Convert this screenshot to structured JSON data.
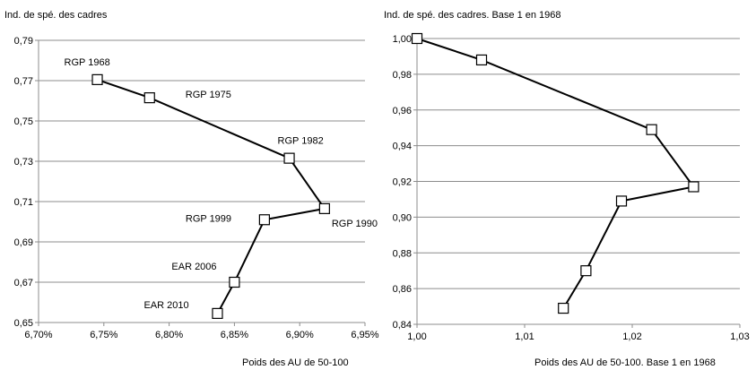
{
  "chart_data": [
    {
      "type": "line",
      "ylabel": "Ind. de spé.  des cadres",
      "xlabel": "Poids des AU de 50-100",
      "xlim": [
        6.7,
        6.95
      ],
      "ylim": [
        0.65,
        0.79
      ],
      "x_ticks": [
        "6,70%",
        "6,75%",
        "6,80%",
        "6,85%",
        "6,90%",
        "6,95%"
      ],
      "y_ticks": [
        "0,65",
        "0,67",
        "0,69",
        "0,71",
        "0,73",
        "0,75",
        "0,77",
        "0,79"
      ],
      "grid": "horizontal",
      "points": [
        {
          "label": "RGP 1968",
          "x": 6.745,
          "y": 0.7705
        },
        {
          "label": "RGP 1975",
          "x": 6.785,
          "y": 0.7615
        },
        {
          "label": "RGP 1982",
          "x": 6.892,
          "y": 0.7315
        },
        {
          "label": "RGP 1990",
          "x": 6.919,
          "y": 0.7065
        },
        {
          "label": "RGP 1999",
          "x": 6.873,
          "y": 0.701
        },
        {
          "label": "EAR 2006",
          "x": 6.85,
          "y": 0.67
        },
        {
          "label": "EAR 2010",
          "x": 6.837,
          "y": 0.6545
        }
      ]
    },
    {
      "type": "line",
      "ylabel": "Ind. de spé.  des cadres. Base 1 en 1968",
      "xlabel": "Poids des AU de 50-100. Base 1 en 1968",
      "xlim": [
        1.0,
        1.03
      ],
      "ylim": [
        0.84,
        1.0
      ],
      "x_ticks": [
        "1,00",
        "1,01",
        "1,02",
        "1,03"
      ],
      "y_ticks": [
        "0,84",
        "0,86",
        "0,88",
        "0,90",
        "0,92",
        "0,94",
        "0,96",
        "0,98",
        "1,00"
      ],
      "grid": "horizontal",
      "points": [
        {
          "x": 1.0,
          "y": 1.0
        },
        {
          "x": 1.006,
          "y": 0.988
        },
        {
          "x": 1.0218,
          "y": 0.949
        },
        {
          "x": 1.0257,
          "y": 0.917
        },
        {
          "x": 1.019,
          "y": 0.909
        },
        {
          "x": 1.0157,
          "y": 0.87
        },
        {
          "x": 1.0136,
          "y": 0.849
        }
      ]
    }
  ]
}
